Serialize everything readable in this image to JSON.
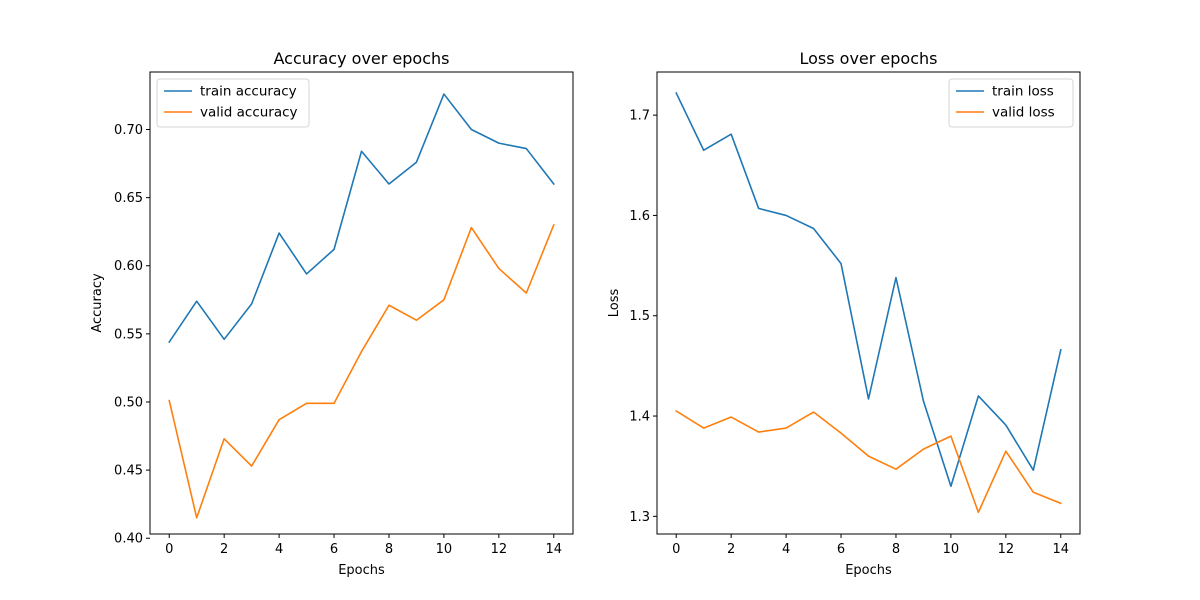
{
  "chart_data": [
    {
      "type": "line",
      "title": "Accuracy over epochs",
      "xlabel": "Epochs",
      "ylabel": "Accuracy",
      "x": [
        0,
        1,
        2,
        3,
        4,
        5,
        6,
        7,
        8,
        9,
        10,
        11,
        12,
        13,
        14
      ],
      "xlim": [
        -0.7,
        14.7
      ],
      "ylim": [
        0.4031,
        0.7422
      ],
      "xticks": [
        0,
        2,
        4,
        6,
        8,
        10,
        12,
        14
      ],
      "xtick_labels": [
        "0",
        "2",
        "4",
        "6",
        "8",
        "10",
        "12",
        "14"
      ],
      "yticks": [
        0.4,
        0.45,
        0.5,
        0.55,
        0.6,
        0.65,
        0.7
      ],
      "ytick_labels": [
        "0.40",
        "0.45",
        "0.50",
        "0.55",
        "0.60",
        "0.65",
        "0.70"
      ],
      "legend_position": "top-left",
      "grid": false,
      "series": [
        {
          "name": "train accuracy",
          "color": "#1f77b4",
          "values": [
            0.544,
            0.574,
            0.546,
            0.572,
            0.624,
            0.594,
            0.612,
            0.684,
            0.66,
            0.676,
            0.726,
            0.7,
            0.69,
            0.686,
            0.66
          ]
        },
        {
          "name": "valid accuracy",
          "color": "#ff7f0e",
          "values": [
            0.501,
            0.415,
            0.473,
            0.453,
            0.487,
            0.499,
            0.499,
            0.537,
            0.571,
            0.56,
            0.575,
            0.628,
            0.598,
            0.58,
            0.63
          ]
        }
      ]
    },
    {
      "type": "line",
      "title": "Loss over epochs",
      "xlabel": "Epochs",
      "ylabel": "Loss",
      "x": [
        0,
        1,
        2,
        3,
        4,
        5,
        6,
        7,
        8,
        9,
        10,
        11,
        12,
        13,
        14
      ],
      "xlim": [
        -0.7,
        14.7
      ],
      "ylim": [
        1.2824,
        1.743
      ],
      "xticks": [
        0,
        2,
        4,
        6,
        8,
        10,
        12,
        14
      ],
      "xtick_labels": [
        "0",
        "2",
        "4",
        "6",
        "8",
        "10",
        "12",
        "14"
      ],
      "yticks": [
        1.3,
        1.4,
        1.5,
        1.6,
        1.7
      ],
      "ytick_labels": [
        "1.3",
        "1.4",
        "1.5",
        "1.6",
        "1.7"
      ],
      "legend_position": "top-right",
      "grid": false,
      "series": [
        {
          "name": "train loss",
          "color": "#1f77b4",
          "values": [
            1.722,
            1.665,
            1.681,
            1.607,
            1.6,
            1.587,
            1.552,
            1.417,
            1.538,
            1.415,
            1.33,
            1.42,
            1.391,
            1.346,
            1.466
          ]
        },
        {
          "name": "valid loss",
          "color": "#ff7f0e",
          "values": [
            1.405,
            1.388,
            1.399,
            1.384,
            1.388,
            1.404,
            1.383,
            1.36,
            1.347,
            1.367,
            1.38,
            1.304,
            1.365,
            1.324,
            1.313
          ]
        }
      ]
    }
  ]
}
